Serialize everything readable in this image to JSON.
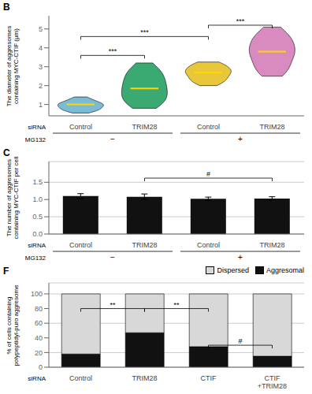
{
  "chart_data": [
    {
      "type": "violin",
      "title": "B",
      "ylabel": "The diameter of aggresomes\ncontaining MYC-CTIF (μm)",
      "xlabel": "siRNA",
      "groups": {
        "name": "MG132",
        "labels": [
          "−",
          "+"
        ]
      },
      "categories": [
        "Control",
        "TRIM28",
        "Control",
        "TRIM28"
      ],
      "values": [
        [
          0.55,
          0.62,
          0.68,
          0.75,
          0.82,
          0.88,
          0.92,
          0.96,
          1.0,
          1.04,
          1.08,
          1.12,
          1.16,
          1.22,
          1.28,
          1.35,
          0.72,
          0.79,
          0.85,
          0.91,
          0.98,
          1.02,
          1.06,
          1.18,
          0.66,
          0.73,
          1.4
        ],
        [
          0.8,
          0.95,
          1.1,
          1.3,
          1.5,
          1.7,
          1.9,
          2.1,
          2.3,
          2.5,
          2.7,
          2.9,
          3.1,
          1.2,
          1.4,
          1.6,
          1.8,
          2.0,
          2.2,
          2.4,
          2.6,
          2.8,
          0.9,
          1.05,
          1.55,
          2.15,
          2.65,
          3.2,
          1.35,
          1.85
        ],
        [
          2.0,
          2.2,
          2.4,
          2.6,
          2.8,
          3.0,
          3.2,
          2.3,
          2.5,
          2.7,
          2.9,
          3.1,
          2.1,
          2.35,
          2.55,
          2.75,
          2.95,
          3.15,
          2.45,
          2.65,
          2.85,
          3.05,
          2.15,
          2.7,
          3.25,
          2.25,
          2.82
        ],
        [
          2.5,
          2.8,
          3.1,
          3.4,
          3.7,
          4.0,
          4.3,
          4.6,
          4.9,
          5.1,
          2.9,
          3.2,
          3.5,
          3.8,
          4.1,
          4.4,
          4.7,
          3.0,
          3.3,
          3.6,
          3.9,
          4.2,
          4.5,
          4.8,
          2.6,
          3.7,
          4.35,
          2.7,
          3.85
        ]
      ],
      "medians": [
        1.0,
        1.85,
        2.7,
        3.8
      ],
      "colors": [
        "#7bbbd4",
        "#3aaa72",
        "#e8c83a",
        "#d98abf"
      ],
      "ylim": [
        0.4,
        5.7
      ],
      "yticks": [
        1,
        2,
        3,
        4,
        5
      ],
      "annotations": [
        {
          "text": "***",
          "x": [
            1,
            2
          ],
          "y": 3.6
        },
        {
          "text": "***",
          "x": [
            1,
            3
          ],
          "y": 4.6
        },
        {
          "text": "***",
          "x": [
            3,
            4
          ],
          "y": 5.2
        }
      ]
    },
    {
      "type": "bar",
      "title": "C",
      "ylabel": "The number of aggresomes\ncontaining MYC-CTIF per cell",
      "xlabel": "siRNA",
      "groups": {
        "name": "MG132",
        "labels": [
          "−",
          "+"
        ]
      },
      "categories": [
        "Control",
        "TRIM28",
        "Control",
        "TRIM28"
      ],
      "values": [
        1.1,
        1.08,
        1.02,
        1.03
      ],
      "errors": [
        0.07,
        0.08,
        0.05,
        0.05
      ],
      "color": "#111111",
      "ylim": [
        0,
        2.1
      ],
      "yticks": [
        {
          "value": 0,
          "label": "0.0"
        },
        0.5,
        {
          "value": 1.0,
          "label": "1.0"
        },
        1.5
      ],
      "grid": true,
      "annotations": [
        {
          "text": "#",
          "x": [
            2,
            4
          ],
          "y": 1.62
        }
      ]
    },
    {
      "type": "bar",
      "stacked": true,
      "title": "F",
      "ylabel": "% of cells containing\npolypeptidyl-puro aggresome",
      "xlabel": "siRNA",
      "categories": [
        "Control",
        "TRIM28",
        "CTIF",
        "CTIF\n+TRIM28"
      ],
      "series": [
        {
          "name": "Aggresomal",
          "color": "#111111",
          "values": [
            18,
            47,
            28,
            15
          ]
        },
        {
          "name": "Dispersed",
          "color": "#d8d8d8",
          "values": [
            82,
            53,
            72,
            85
          ]
        }
      ],
      "ylim": [
        0,
        115
      ],
      "yticks": [
        0,
        20,
        40,
        60,
        80,
        100
      ],
      "grid": true,
      "legend": "upper right",
      "annotations": [
        {
          "text": "**",
          "x": [
            1,
            2
          ],
          "y": 80
        },
        {
          "text": "**",
          "x": [
            2,
            3
          ],
          "y": 80
        },
        {
          "text": "#",
          "x": [
            3,
            4
          ],
          "y": 30
        }
      ]
    }
  ]
}
